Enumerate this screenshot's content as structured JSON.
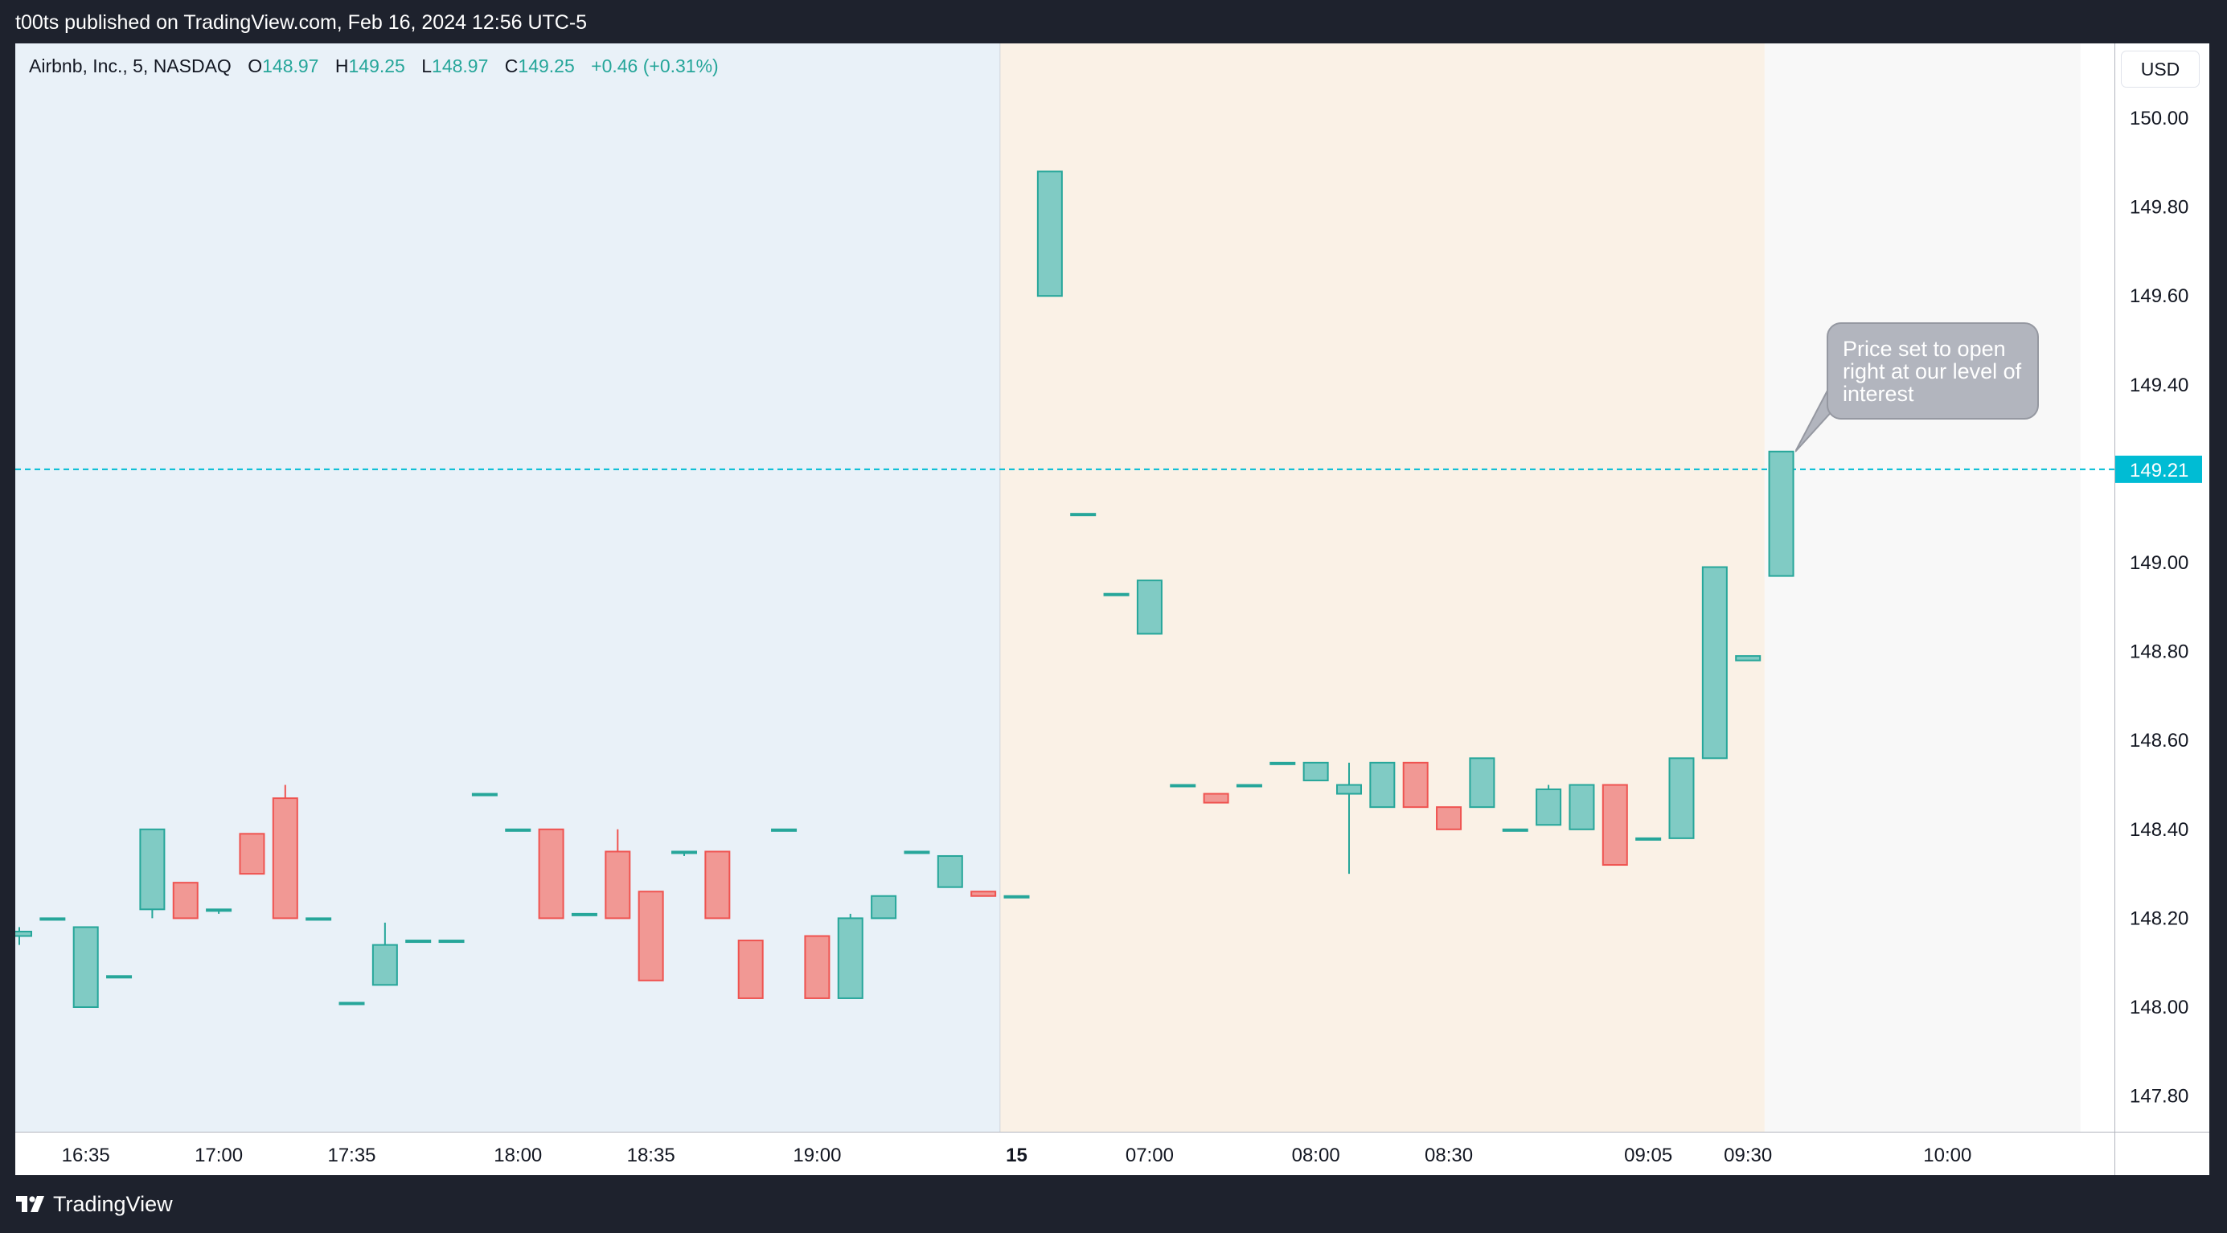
{
  "header": {
    "published_text": "t00ts published on TradingView.com, Feb 16, 2024 12:56 UTC-5"
  },
  "footer": {
    "brand": "TradingView",
    "logo_icon": "tradingview-logo-icon"
  },
  "legend": {
    "symbol": "Airbnb, Inc., 5, NASDAQ",
    "open_label": "O",
    "open": "148.97",
    "high_label": "H",
    "high": "149.25",
    "low_label": "L",
    "low": "148.97",
    "close_label": "C",
    "close": "149.25",
    "change": "+0.46 (+0.31%)"
  },
  "currency": "USD",
  "annotation": {
    "text": "Price set to open right at our level of interest"
  },
  "colors": {
    "up": "#26a69a",
    "up_fill": "#80cbc4",
    "down": "#ef5350",
    "down_fill": "#f19894",
    "price_line": "#00bcd4",
    "session_regular_bg": "#e9f1f8",
    "session_pre_bg": "#faf1e6",
    "session_future_bg": "#f8f8f8",
    "axis_text": "#131722"
  },
  "chart_data": {
    "type": "candlestick",
    "title": "Airbnb, Inc., 5, NASDAQ",
    "interval": "5",
    "currency": "USD",
    "ylim": [
      147.72,
      150.18
    ],
    "y_ticks": [
      "150.00",
      "149.80",
      "149.60",
      "149.40",
      "149.20",
      "149.00",
      "148.80",
      "148.60",
      "148.40",
      "148.20",
      "148.00",
      "147.80"
    ],
    "x_ticks": [
      {
        "label": "16:35",
        "bar": 2
      },
      {
        "label": "17:00",
        "bar": 6
      },
      {
        "label": "17:35",
        "bar": 10
      },
      {
        "label": "18:00",
        "bar": 15
      },
      {
        "label": "18:35",
        "bar": 19
      },
      {
        "label": "19:00",
        "bar": 24
      },
      {
        "label": "15",
        "bar": 30,
        "bold": true
      },
      {
        "label": "07:00",
        "bar": 34
      },
      {
        "label": "08:00",
        "bar": 39
      },
      {
        "label": "08:30",
        "bar": 43
      },
      {
        "label": "09:05",
        "bar": 49
      },
      {
        "label": "09:30",
        "bar": 52
      },
      {
        "label": "10:00",
        "bar": 58
      }
    ],
    "sessions": [
      {
        "name": "previous-day",
        "from_bar": -0.5,
        "to_bar": 29.5
      },
      {
        "name": "premarket",
        "from_bar": 29.5,
        "to_bar": 52.5
      },
      {
        "name": "future",
        "from_bar": 52.5,
        "to_bar": 62
      }
    ],
    "last_price": 149.21,
    "last_price_label": "149.21",
    "candles": [
      {
        "o": 148.16,
        "h": 148.18,
        "l": 148.14,
        "c": 148.17
      },
      {
        "o": 148.2,
        "h": 148.2,
        "l": 148.2,
        "c": 148.2
      },
      {
        "o": 148.0,
        "h": 148.18,
        "l": 148.0,
        "c": 148.18
      },
      {
        "o": 148.07,
        "h": 148.07,
        "l": 148.07,
        "c": 148.07
      },
      {
        "o": 148.22,
        "h": 148.4,
        "l": 148.2,
        "c": 148.4
      },
      {
        "o": 148.28,
        "h": 148.28,
        "l": 148.2,
        "c": 148.2
      },
      {
        "o": 148.22,
        "h": 148.22,
        "l": 148.21,
        "c": 148.22
      },
      {
        "o": 148.39,
        "h": 148.39,
        "l": 148.3,
        "c": 148.3
      },
      {
        "o": 148.47,
        "h": 148.5,
        "l": 148.2,
        "c": 148.2
      },
      {
        "o": 148.2,
        "h": 148.2,
        "l": 148.2,
        "c": 148.2
      },
      {
        "o": 148.01,
        "h": 148.01,
        "l": 148.01,
        "c": 148.01
      },
      {
        "o": 148.05,
        "h": 148.19,
        "l": 148.05,
        "c": 148.14
      },
      {
        "o": 148.15,
        "h": 148.15,
        "l": 148.15,
        "c": 148.15
      },
      {
        "o": 148.15,
        "h": 148.15,
        "l": 148.15,
        "c": 148.15
      },
      {
        "o": 148.48,
        "h": 148.48,
        "l": 148.48,
        "c": 148.48
      },
      {
        "o": 148.4,
        "h": 148.4,
        "l": 148.4,
        "c": 148.4
      },
      {
        "o": 148.4,
        "h": 148.4,
        "l": 148.2,
        "c": 148.2
      },
      {
        "o": 148.21,
        "h": 148.21,
        "l": 148.21,
        "c": 148.21
      },
      {
        "o": 148.35,
        "h": 148.4,
        "l": 148.2,
        "c": 148.2
      },
      {
        "o": 148.26,
        "h": 148.26,
        "l": 148.06,
        "c": 148.06
      },
      {
        "o": 148.35,
        "h": 148.35,
        "l": 148.34,
        "c": 148.35
      },
      {
        "o": 148.35,
        "h": 148.35,
        "l": 148.2,
        "c": 148.2
      },
      {
        "o": 148.15,
        "h": 148.15,
        "l": 148.02,
        "c": 148.02
      },
      {
        "o": 148.4,
        "h": 148.4,
        "l": 148.4,
        "c": 148.4
      },
      {
        "o": 148.16,
        "h": 148.16,
        "l": 148.02,
        "c": 148.02
      },
      {
        "o": 148.02,
        "h": 148.21,
        "l": 148.02,
        "c": 148.2
      },
      {
        "o": 148.2,
        "h": 148.25,
        "l": 148.2,
        "c": 148.25
      },
      {
        "o": 148.35,
        "h": 148.35,
        "l": 148.35,
        "c": 148.35
      },
      {
        "o": 148.27,
        "h": 148.34,
        "l": 148.27,
        "c": 148.34
      },
      {
        "o": 148.26,
        "h": 148.26,
        "l": 148.25,
        "c": 148.25
      },
      {
        "o": 148.25,
        "h": 148.25,
        "l": 148.25,
        "c": 148.25
      },
      {
        "o": 149.6,
        "h": 149.88,
        "l": 149.6,
        "c": 149.88
      },
      {
        "o": 149.11,
        "h": 149.11,
        "l": 149.11,
        "c": 149.11
      },
      {
        "o": 148.93,
        "h": 148.93,
        "l": 148.93,
        "c": 148.93
      },
      {
        "o": 148.84,
        "h": 148.96,
        "l": 148.84,
        "c": 148.96
      },
      {
        "o": 148.5,
        "h": 148.5,
        "l": 148.5,
        "c": 148.5
      },
      {
        "o": 148.48,
        "h": 148.48,
        "l": 148.46,
        "c": 148.46
      },
      {
        "o": 148.5,
        "h": 148.5,
        "l": 148.5,
        "c": 148.5
      },
      {
        "o": 148.55,
        "h": 148.55,
        "l": 148.55,
        "c": 148.55
      },
      {
        "o": 148.51,
        "h": 148.55,
        "l": 148.51,
        "c": 148.55
      },
      {
        "o": 148.48,
        "h": 148.55,
        "l": 148.3,
        "c": 148.5
      },
      {
        "o": 148.45,
        "h": 148.55,
        "l": 148.45,
        "c": 148.55
      },
      {
        "o": 148.55,
        "h": 148.55,
        "l": 148.45,
        "c": 148.45
      },
      {
        "o": 148.45,
        "h": 148.45,
        "l": 148.4,
        "c": 148.4
      },
      {
        "o": 148.45,
        "h": 148.56,
        "l": 148.45,
        "c": 148.56
      },
      {
        "o": 148.4,
        "h": 148.4,
        "l": 148.4,
        "c": 148.4
      },
      {
        "o": 148.41,
        "h": 148.5,
        "l": 148.41,
        "c": 148.49
      },
      {
        "o": 148.4,
        "h": 148.5,
        "l": 148.4,
        "c": 148.5
      },
      {
        "o": 148.5,
        "h": 148.5,
        "l": 148.32,
        "c": 148.32
      },
      {
        "o": 148.38,
        "h": 148.38,
        "l": 148.38,
        "c": 148.38
      },
      {
        "o": 148.38,
        "h": 148.56,
        "l": 148.38,
        "c": 148.56
      },
      {
        "o": 148.56,
        "h": 148.99,
        "l": 148.56,
        "c": 148.99
      },
      {
        "o": 148.78,
        "h": 148.79,
        "l": 148.78,
        "c": 148.79
      },
      {
        "o": 148.97,
        "h": 149.25,
        "l": 148.97,
        "c": 149.25
      }
    ]
  }
}
